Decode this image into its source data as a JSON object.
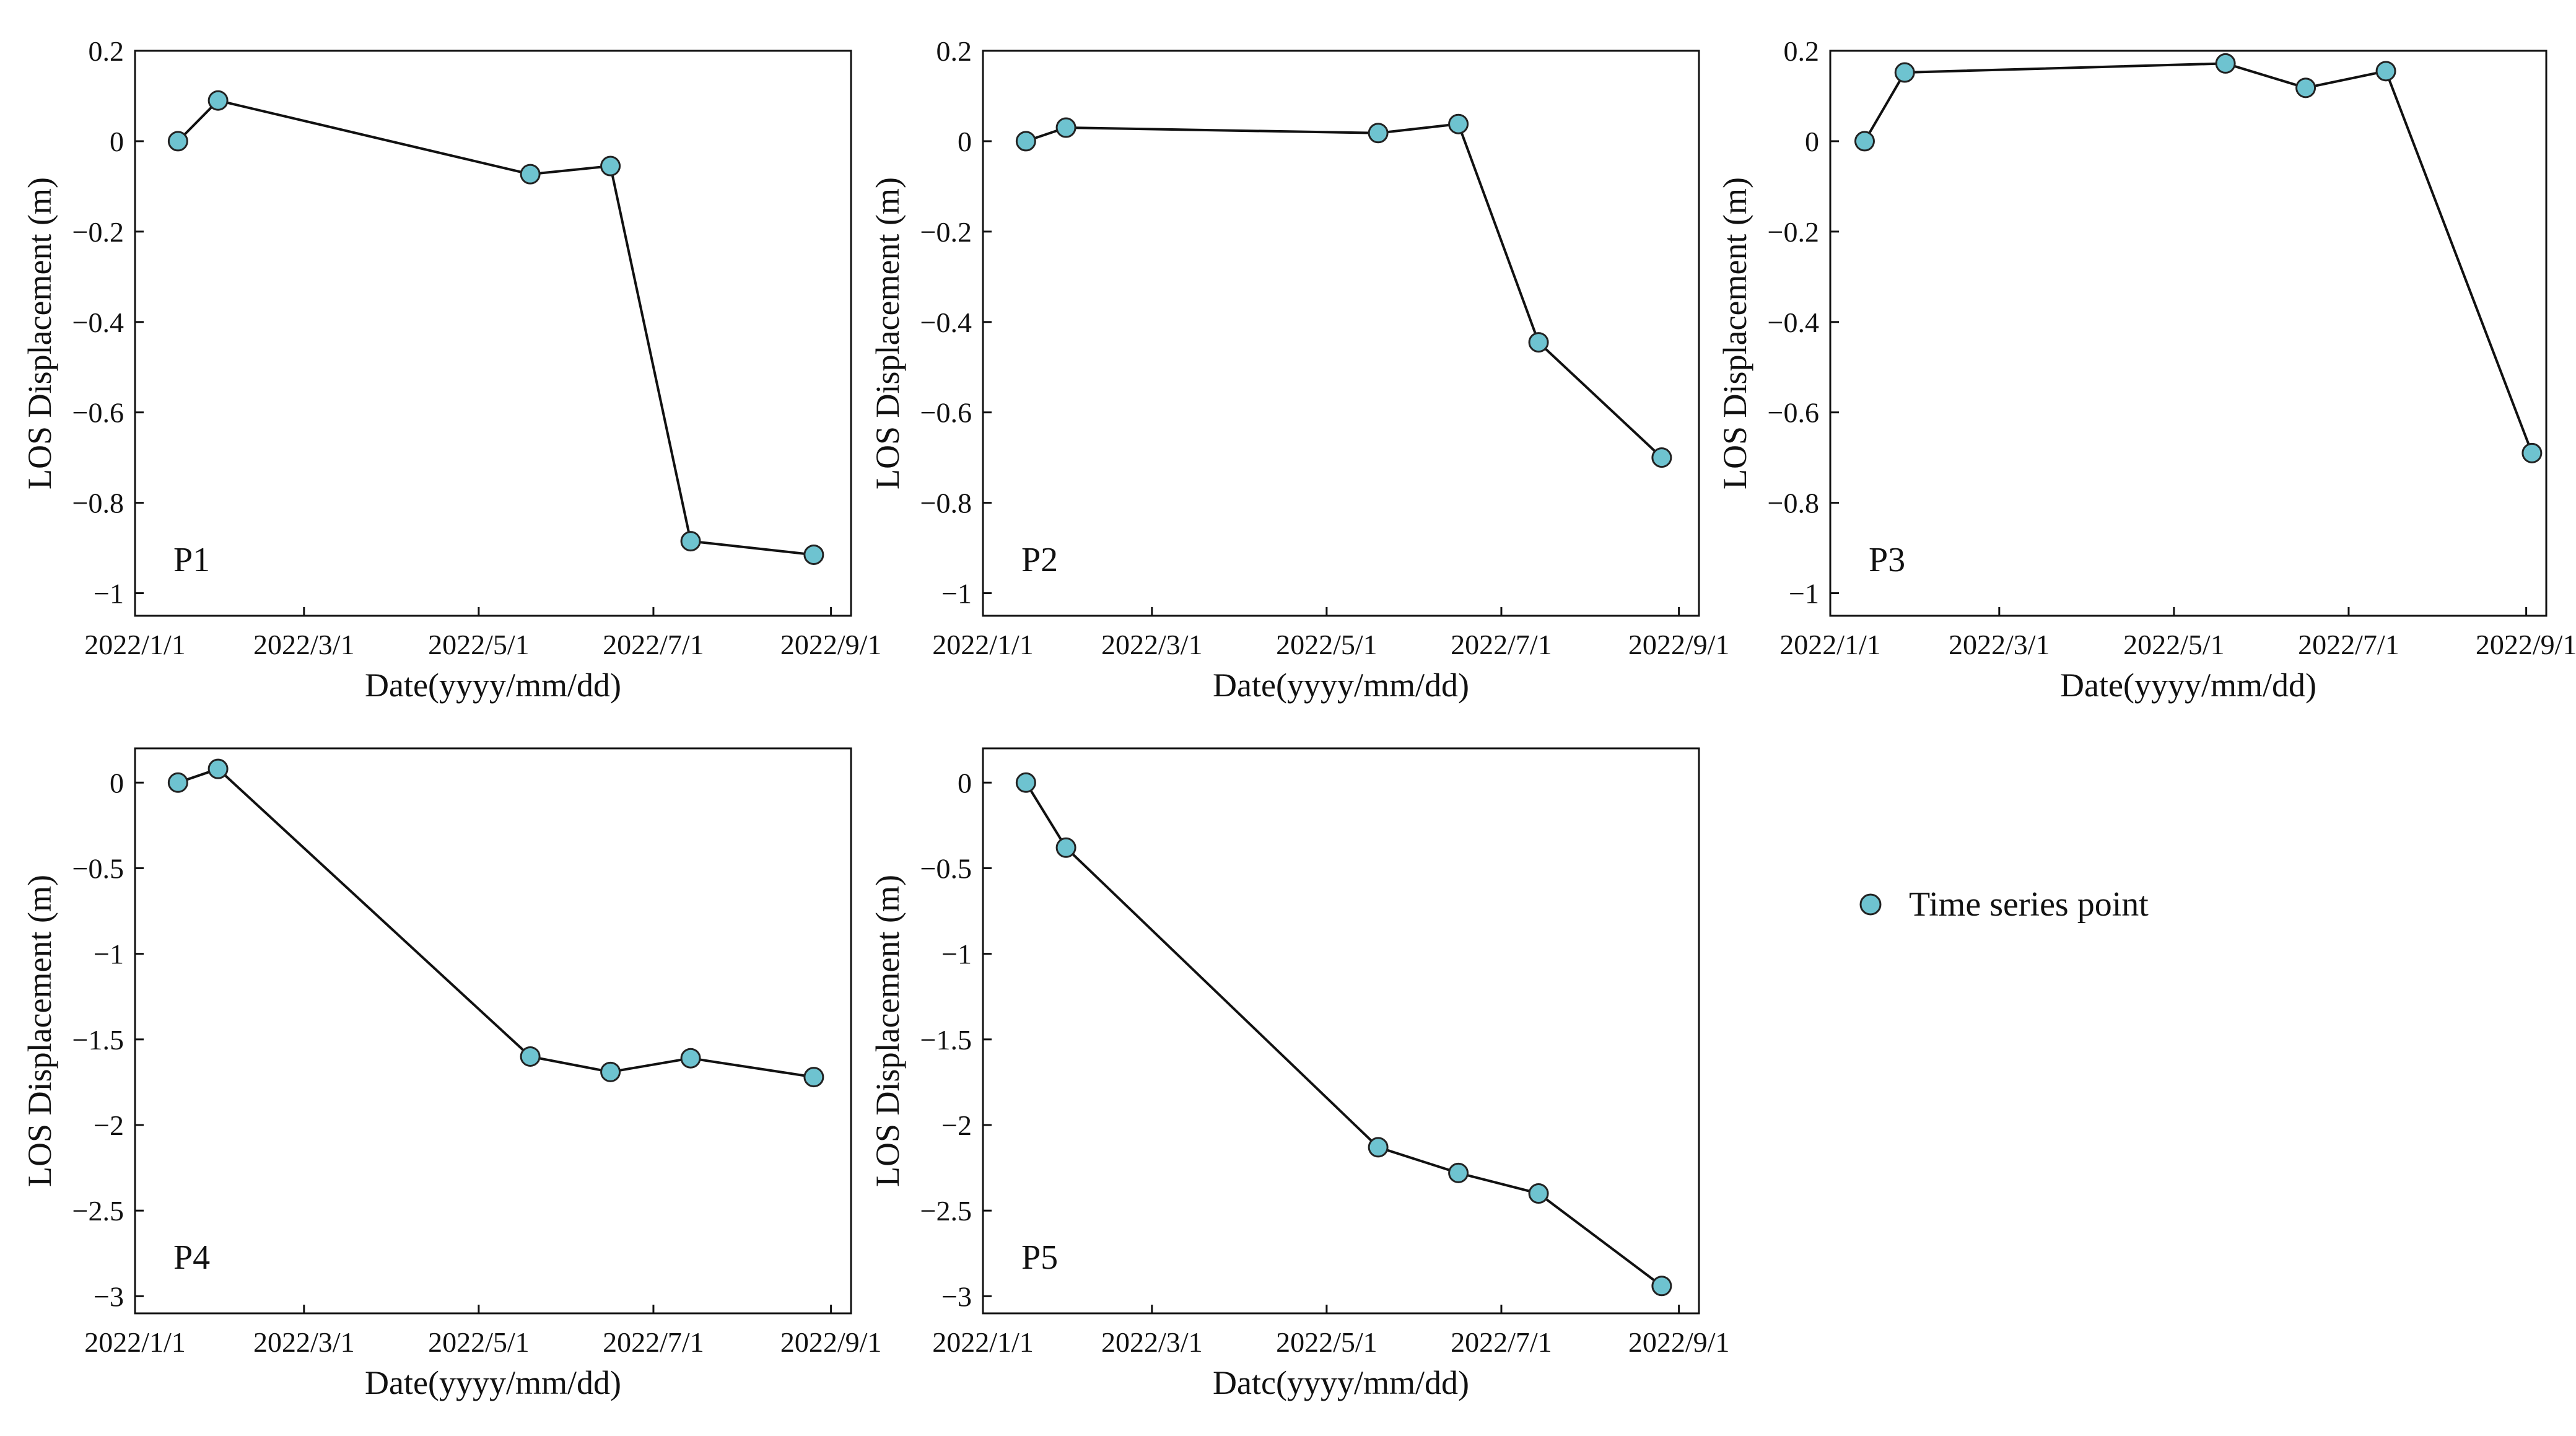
{
  "figure": {
    "marker_color": "#6ec3d0",
    "marker_edge_color": "#222222",
    "line_color": "#111111",
    "legend": {
      "label": "Time series point",
      "position": "right-middle"
    }
  },
  "chart_data": [
    {
      "type": "line",
      "panel_label": "P1",
      "xlabel": "Date(yyyy/mm/dd)",
      "ylabel": "LOS Displacement (m)",
      "x_tick_labels": [
        "2022/1/1",
        "2022/3/1",
        "2022/5/1",
        "2022/7/1",
        "2022/9/1"
      ],
      "x_tick_days": [
        0,
        59,
        120,
        181,
        243
      ],
      "xlim_days": [
        0,
        250
      ],
      "ylim": [
        -1.05,
        0.2
      ],
      "y_ticks": [
        0.2,
        0,
        -0.2,
        -0.4,
        -0.6,
        -0.8,
        -1
      ],
      "y_tick_labels": [
        "0.2",
        "0",
        "−0.2",
        "−0.4",
        "−0.6",
        "−0.8",
        "−1"
      ],
      "series": [
        {
          "name": "Time series point",
          "x_days": [
            15,
            29,
            138,
            166,
            194,
            237
          ],
          "values": [
            0,
            0.09,
            -0.073,
            -0.055,
            -0.885,
            -0.915
          ]
        }
      ]
    },
    {
      "type": "line",
      "panel_label": "P2",
      "xlabel": "Date(yyyy/mm/dd)",
      "ylabel": "LOS Displacement (m)",
      "x_tick_labels": [
        "2022/1/1",
        "2022/3/1",
        "2022/5/1",
        "2022/7/1",
        "2022/9/1"
      ],
      "x_tick_days": [
        0,
        59,
        120,
        181,
        243
      ],
      "xlim_days": [
        0,
        250
      ],
      "ylim": [
        -1.05,
        0.2
      ],
      "y_ticks": [
        0.2,
        0,
        -0.2,
        -0.4,
        -0.6,
        -0.8,
        -1
      ],
      "y_tick_labels": [
        "0.2",
        "0",
        "−0.2",
        "−0.4",
        "−0.6",
        "−0.8",
        "−1"
      ],
      "series": [
        {
          "name": "Time series point",
          "x_days": [
            15,
            29,
            138,
            166,
            194,
            237
          ],
          "values": [
            0,
            0.03,
            0.018,
            0.038,
            -0.445,
            -0.7
          ]
        }
      ]
    },
    {
      "type": "line",
      "panel_label": "P3",
      "xlabel": "Date(yyyy/mm/dd)",
      "ylabel": "LOS Displacement (m)",
      "x_tick_labels": [
        "2022/1/1",
        "2022/3/1",
        "2022/5/1",
        "2022/7/1",
        "2022/9/1"
      ],
      "x_tick_days": [
        0,
        59,
        120,
        181,
        243
      ],
      "xlim_days": [
        0,
        250
      ],
      "ylim": [
        -1.05,
        0.2
      ],
      "y_ticks": [
        0.2,
        0,
        -0.2,
        -0.4,
        -0.6,
        -0.8,
        -1
      ],
      "y_tick_labels": [
        "0.2",
        "0",
        "−0.2",
        "−0.4",
        "−0.6",
        "−0.8",
        "−1"
      ],
      "series": [
        {
          "name": "Time series point",
          "x_days": [
            12,
            26,
            138,
            166,
            194,
            245
          ],
          "values": [
            0,
            0.152,
            0.172,
            0.118,
            0.155,
            -0.69
          ]
        }
      ]
    },
    {
      "type": "line",
      "panel_label": "P4",
      "xlabel": "Date(yyyy/mm/dd)",
      "ylabel": "LOS Displacement (m)",
      "x_tick_labels": [
        "2022/1/1",
        "2022/3/1",
        "2022/5/1",
        "2022/7/1",
        "2022/9/1"
      ],
      "x_tick_days": [
        0,
        59,
        120,
        181,
        243
      ],
      "xlim_days": [
        0,
        250
      ],
      "ylim": [
        -3.1,
        0.2
      ],
      "y_ticks": [
        0,
        -0.5,
        -1,
        -1.5,
        -2,
        -2.5,
        -3
      ],
      "y_tick_labels": [
        "0",
        "−0.5",
        "−1",
        "−1.5",
        "−2",
        "−2.5",
        "−3"
      ],
      "series": [
        {
          "name": "Time series point",
          "x_days": [
            15,
            29,
            138,
            166,
            194,
            237
          ],
          "values": [
            0,
            0.08,
            -1.6,
            -1.69,
            -1.61,
            -1.72
          ]
        }
      ]
    },
    {
      "type": "line",
      "panel_label": "P5",
      "xlabel": "Datc(yyyy/mm/dd)",
      "ylabel": "LOS Displacement (m)",
      "x_tick_labels": [
        "2022/1/1",
        "2022/3/1",
        "2022/5/1",
        "2022/7/1",
        "2022/9/1"
      ],
      "x_tick_days": [
        0,
        59,
        120,
        181,
        243
      ],
      "xlim_days": [
        0,
        250
      ],
      "ylim": [
        -3.1,
        0.2
      ],
      "y_ticks": [
        0,
        -0.5,
        -1,
        -1.5,
        -2,
        -2.5,
        -3
      ],
      "y_tick_labels": [
        "0",
        "−0.5",
        "−1",
        "−1.5",
        "−2",
        "−2.5",
        "−3"
      ],
      "series": [
        {
          "name": "Time series point",
          "x_days": [
            15,
            29,
            138,
            166,
            194,
            237
          ],
          "values": [
            0,
            -0.38,
            -2.13,
            -2.28,
            -2.4,
            -2.94
          ]
        }
      ]
    }
  ]
}
